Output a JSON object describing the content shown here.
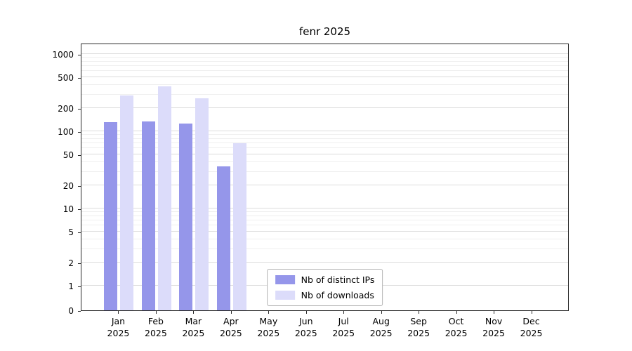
{
  "chart_data": {
    "type": "bar",
    "title": "fenr 2025",
    "yscale": "log",
    "ylim": [
      0,
      1500
    ],
    "yticks": [
      0,
      1,
      2,
      5,
      10,
      20,
      50,
      100,
      200,
      500,
      1000
    ],
    "yticks_minor": [
      3,
      4,
      6,
      7,
      8,
      9,
      30,
      40,
      60,
      70,
      80,
      90,
      300,
      400,
      600,
      700,
      800,
      900
    ],
    "grid": true,
    "legend_position": "lower center",
    "categories": [
      {
        "month": "Jan",
        "year": "2025"
      },
      {
        "month": "Feb",
        "year": "2025"
      },
      {
        "month": "Mar",
        "year": "2025"
      },
      {
        "month": "Apr",
        "year": "2025"
      },
      {
        "month": "May",
        "year": "2025"
      },
      {
        "month": "Jun",
        "year": "2025"
      },
      {
        "month": "Jul",
        "year": "2025"
      },
      {
        "month": "Aug",
        "year": "2025"
      },
      {
        "month": "Sep",
        "year": "2025"
      },
      {
        "month": "Oct",
        "year": "2025"
      },
      {
        "month": "Nov",
        "year": "2025"
      },
      {
        "month": "Dec",
        "year": "2025"
      }
    ],
    "series": [
      {
        "name": "Nb of distinct IPs",
        "color": "#9596ea",
        "values": [
          130,
          135,
          125,
          35,
          0,
          0,
          0,
          0,
          0,
          0,
          0,
          0
        ]
      },
      {
        "name": "Nb of downloads",
        "color": "#dcdcfa",
        "values": [
          290,
          380,
          270,
          70,
          0,
          0,
          0,
          0,
          0,
          0,
          0,
          0
        ]
      }
    ]
  }
}
